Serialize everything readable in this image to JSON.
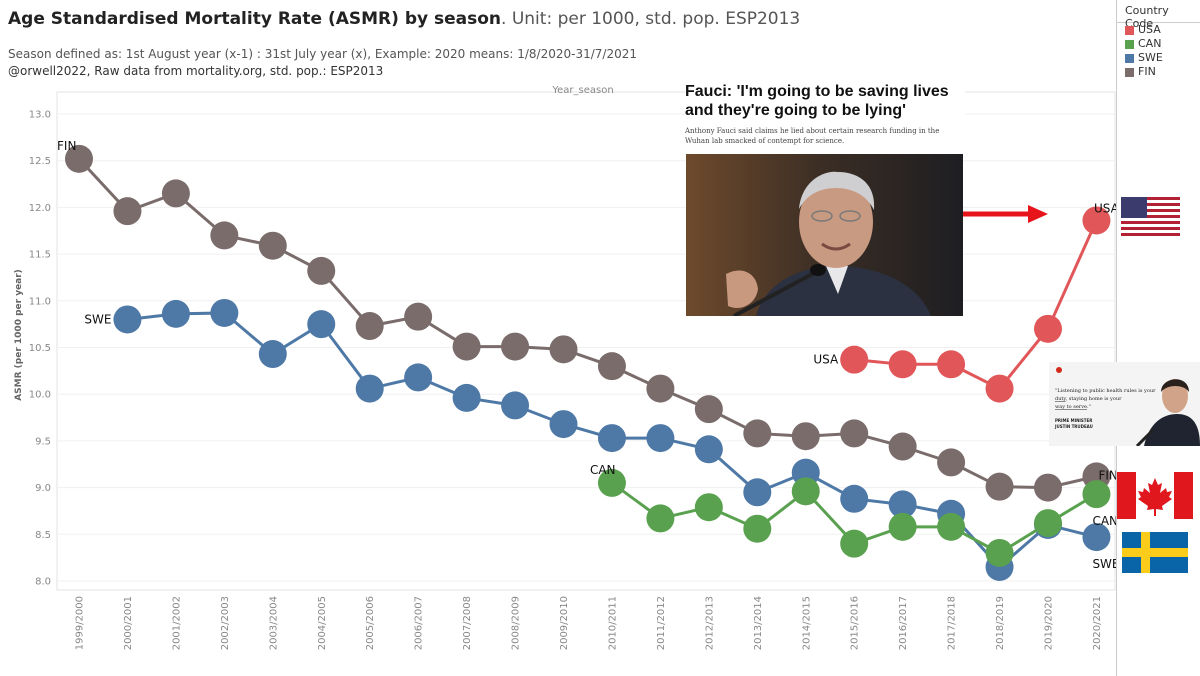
{
  "title": {
    "bold": "Age Standardised Mortality Rate (ASMR) by season",
    "rest": ". Unit: per 1000, std. pop. ESP2013"
  },
  "subtitle_1": "Season defined as: 1st August year (x-1) : 31st July  year (x), Example: 2020 means: 1/8/2020-31/7/2021",
  "subtitle_2": "@orwell2022,  Raw data from mortality.org, std. pop.: ESP2013",
  "legend": {
    "title": "Country Code",
    "items": [
      {
        "label": "USA",
        "color": "#e15759"
      },
      {
        "label": "CAN",
        "color": "#59a14f"
      },
      {
        "label": "SWE",
        "color": "#4e79a7"
      },
      {
        "label": "FIN",
        "color": "#7a6c6b"
      }
    ]
  },
  "news": {
    "headline": "Fauci: 'I'm going to be saving lives and they're going to be lying'",
    "blurb": "Anthony Fauci said claims he lied about certain research funding in the Wuhan lab smacked of contempt for science."
  },
  "trudeau_card": {
    "quote_pre": "\"Listening to public health rules is your ",
    "quote_duty": "duty",
    "quote_mid": ", staying home is your ",
    "quote_way": "way to serve",
    "quote_end": ".\"",
    "name_line1": "PRIME MINISTER",
    "name_line2": "JUSTIN TRUDEAU"
  },
  "chart_data": {
    "type": "line",
    "column_header": "Year_season",
    "ylabel": "ASMR (per 1000 per year)",
    "ylim": [
      8.0,
      13.0
    ],
    "yticks": [
      "8.0",
      "8.5",
      "9.0",
      "9.5",
      "10.0",
      "10.5",
      "11.0",
      "11.5",
      "12.0",
      "12.5",
      "13.0"
    ],
    "categories": [
      "1999/2000",
      "2000/2001",
      "2001/2002",
      "2002/2003",
      "2003/2004",
      "2004/2005",
      "2005/2006",
      "2006/2007",
      "2007/2008",
      "2008/2009",
      "2009/2010",
      "2010/2011",
      "2011/2012",
      "2012/2013",
      "2013/2014",
      "2014/2015",
      "2015/2016",
      "2016/2017",
      "2017/2018",
      "2018/2019",
      "2019/2020",
      "2020/2021"
    ],
    "series": [
      {
        "name": "FIN",
        "color": "#7a6c6b",
        "values": [
          12.52,
          11.96,
          12.15,
          11.7,
          11.59,
          11.32,
          10.73,
          10.83,
          10.51,
          10.51,
          10.48,
          10.3,
          10.06,
          9.84,
          9.58,
          9.55,
          9.58,
          9.44,
          9.27,
          9.01,
          9.0,
          9.12
        ]
      },
      {
        "name": "SWE",
        "color": "#4e79a7",
        "values": [
          null,
          10.8,
          10.86,
          10.87,
          10.43,
          10.75,
          10.06,
          10.18,
          9.96,
          9.88,
          9.68,
          9.53,
          9.53,
          9.41,
          8.95,
          9.16,
          8.88,
          8.82,
          8.72,
          8.15,
          8.6,
          8.47
        ]
      },
      {
        "name": "CAN",
        "color": "#59a14f",
        "values": [
          null,
          null,
          null,
          null,
          null,
          null,
          null,
          null,
          null,
          null,
          null,
          9.05,
          8.67,
          8.79,
          8.56,
          8.96,
          8.4,
          8.58,
          8.58,
          8.3,
          8.62,
          8.93
        ]
      },
      {
        "name": "USA",
        "color": "#e15759",
        "values": [
          null,
          null,
          null,
          null,
          null,
          null,
          null,
          null,
          null,
          null,
          null,
          null,
          null,
          null,
          null,
          null,
          10.37,
          10.32,
          10.32,
          10.06,
          10.7,
          11.86
        ]
      }
    ],
    "annotations": [
      {
        "text": "FIN",
        "series": "FIN",
        "index": 0,
        "pos": "above-left"
      },
      {
        "text": "SWE",
        "series": "SWE",
        "index": 1,
        "pos": "left"
      },
      {
        "text": "CAN",
        "series": "CAN",
        "index": 11,
        "pos": "above-left"
      },
      {
        "text": "USA",
        "series": "USA",
        "index": 16,
        "pos": "left"
      },
      {
        "text": "USA",
        "series": "USA",
        "index": 21,
        "pos": "above"
      },
      {
        "text": "FIN",
        "series": "FIN",
        "index": 21,
        "pos": "right"
      },
      {
        "text": "CAN",
        "series": "CAN",
        "index": 21,
        "pos": "below-right"
      },
      {
        "text": "SWE",
        "series": "SWE",
        "index": 21,
        "pos": "below-right"
      }
    ]
  }
}
